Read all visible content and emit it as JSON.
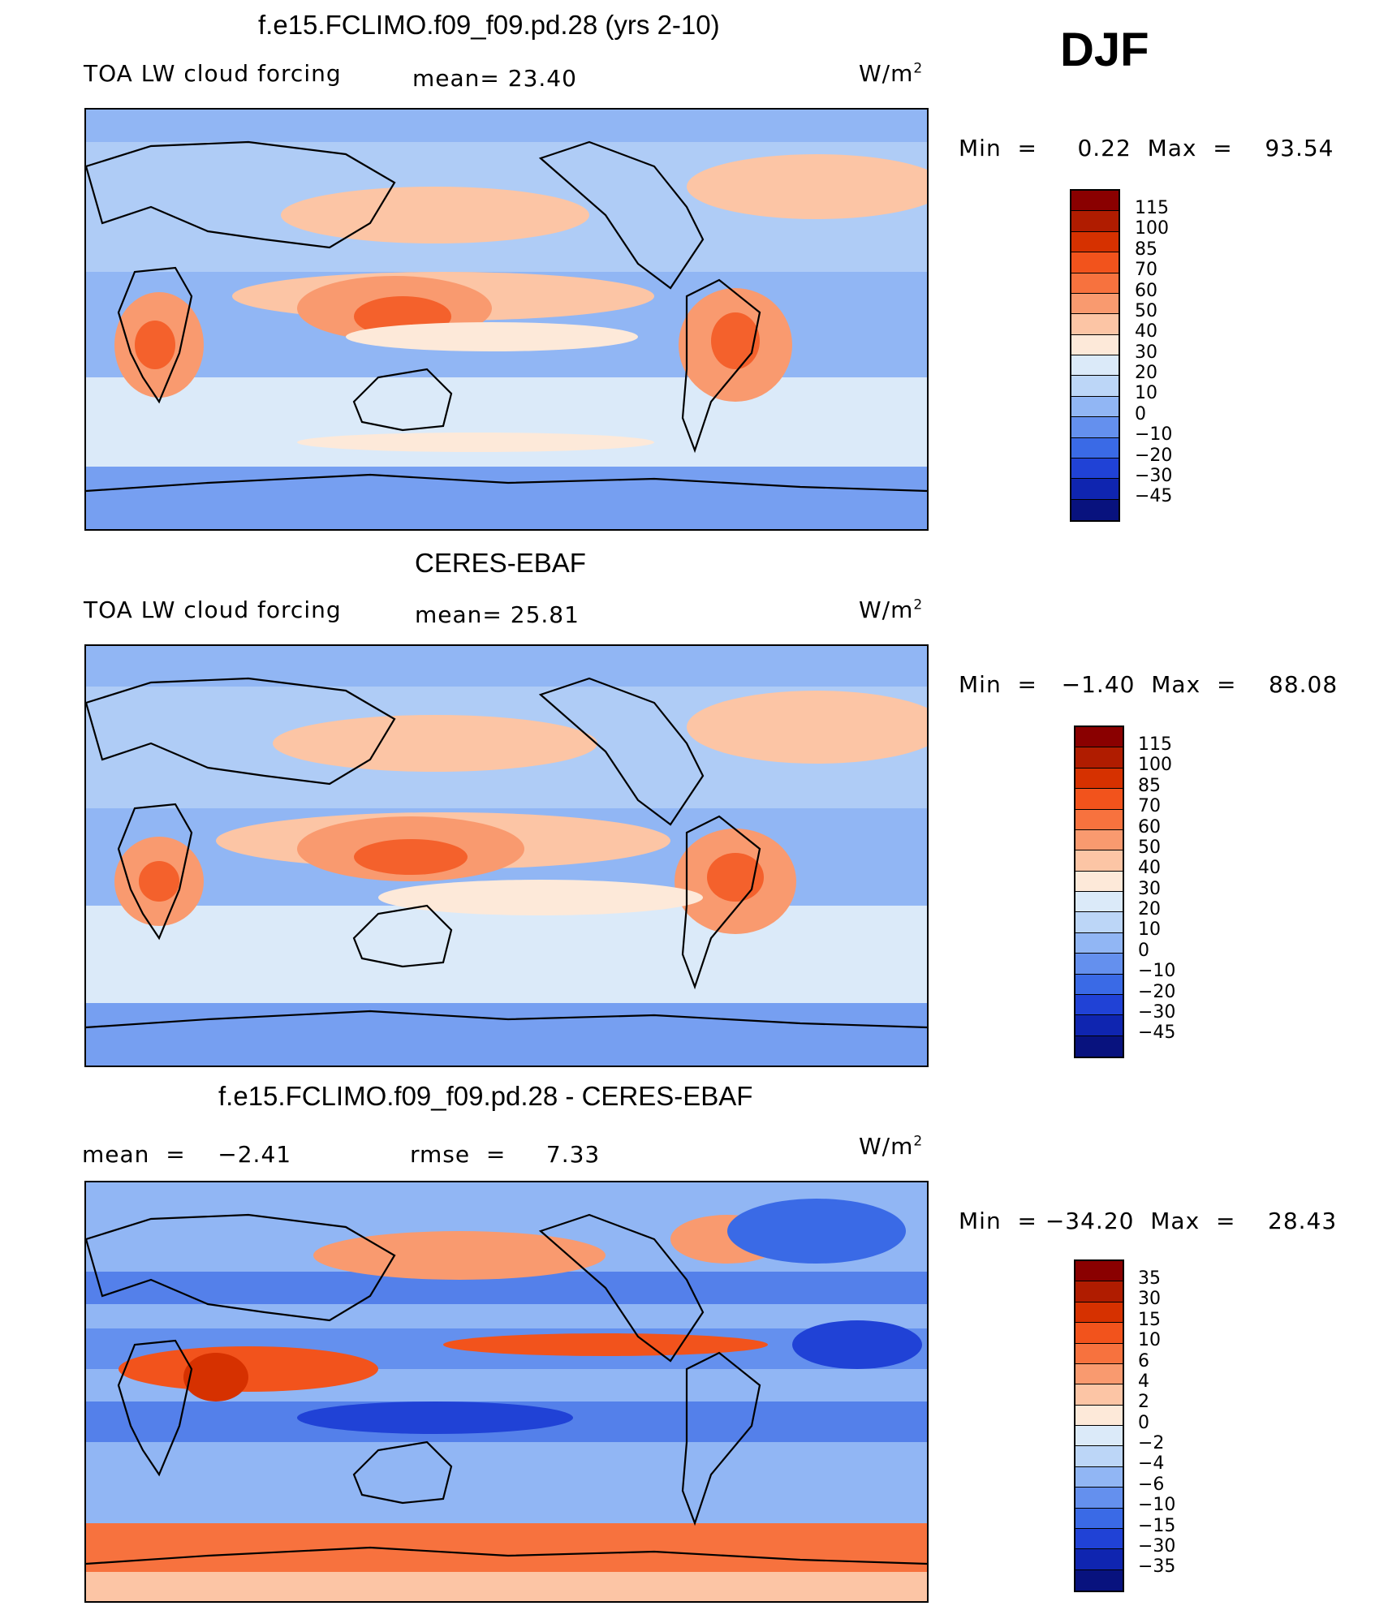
{
  "season_label": "DJF",
  "panels": [
    {
      "id": "model",
      "title": "f.e15.FCLIMO.f09_f09.pd.28 (yrs 2-10)",
      "left_label": "TOA LW cloud forcing",
      "mid_label": "mean=   23.40",
      "units_text": "W/m",
      "units_sup": "2",
      "minmax": "Min  =     0.22  Max  =    93.54"
    },
    {
      "id": "obs",
      "title": "CERES-EBAF",
      "left_label": "TOA LW cloud forcing",
      "mid_label": "mean=   25.81",
      "units_text": "W/m",
      "units_sup": "2",
      "minmax": "Min  =   −1.40  Max  =    88.08"
    },
    {
      "id": "diff",
      "title": "f.e15.FCLIMO.f09_f09.pd.28 - CERES-EBAF",
      "left_label": "mean  =    −2.41",
      "mid_label": "rmse  =     7.33",
      "units_text": "W/m",
      "units_sup": "2",
      "minmax": "Min  = −34.20  Max  =    28.43"
    }
  ],
  "colorbars": {
    "absolute": {
      "labels": [
        "115",
        "100",
        "85",
        "70",
        "60",
        "50",
        "40",
        "30",
        "20",
        "10",
        "0",
        "−10",
        "−20",
        "−30",
        "−45"
      ],
      "colors": [
        "#8a0000",
        "#b01c00",
        "#d63100",
        "#f2531c",
        "#f7723e",
        "#f99a6f",
        "#fcc5a5",
        "#fde9d9",
        "#dbeaf9",
        "#bcd6f7",
        "#91b6f4",
        "#6490ee",
        "#3a6ae6",
        "#2042d6",
        "#0f25b0",
        "#08127e"
      ]
    },
    "difference": {
      "labels": [
        "35",
        "30",
        "15",
        "10",
        "6",
        "4",
        "2",
        "0",
        "−2",
        "−4",
        "−6",
        "−10",
        "−15",
        "−30",
        "−35"
      ],
      "colors": [
        "#8a0000",
        "#b01c00",
        "#d63100",
        "#f2531c",
        "#f7723e",
        "#f99a6f",
        "#fcc5a5",
        "#fde9d9",
        "#dbeaf9",
        "#bcd6f7",
        "#91b6f4",
        "#6490ee",
        "#3a6ae6",
        "#2042d6",
        "#0f25b0",
        "#08127e"
      ]
    }
  },
  "chart_data": [
    {
      "type": "heatmap",
      "title": "f.e15.FCLIMO.f09_f09.pd.28 (yrs 2-10)",
      "subtitle": "TOA LW cloud forcing",
      "units": "W/m2",
      "mean": 23.4,
      "min": 0.22,
      "max": 93.54,
      "contour_levels": [
        -45,
        -30,
        -20,
        -10,
        0,
        10,
        20,
        30,
        40,
        50,
        60,
        70,
        85,
        100,
        115
      ]
    },
    {
      "type": "heatmap",
      "title": "CERES-EBAF",
      "subtitle": "TOA LW cloud forcing",
      "units": "W/m2",
      "mean": 25.81,
      "min": -1.4,
      "max": 88.08,
      "contour_levels": [
        -45,
        -30,
        -20,
        -10,
        0,
        10,
        20,
        30,
        40,
        50,
        60,
        70,
        85,
        100,
        115
      ]
    },
    {
      "type": "heatmap",
      "title": "f.e15.FCLIMO.f09_f09.pd.28 - CERES-EBAF",
      "units": "W/m2",
      "mean": -2.41,
      "rmse": 7.33,
      "min": -34.2,
      "max": 28.43,
      "contour_levels": [
        -35,
        -30,
        -15,
        -10,
        -6,
        -4,
        -2,
        0,
        2,
        4,
        6,
        10,
        15,
        30,
        35
      ]
    }
  ]
}
